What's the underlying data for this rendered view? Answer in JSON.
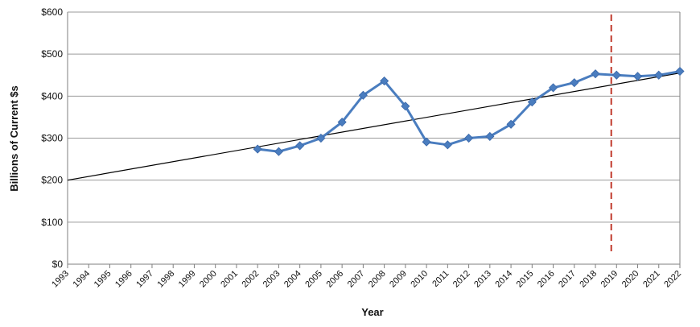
{
  "chart_data": {
    "type": "line",
    "xlabel": "Year",
    "ylabel": "Billions of Current $s",
    "ylim": [
      0,
      600
    ],
    "yticks": [
      0,
      100,
      200,
      300,
      400,
      500,
      600
    ],
    "ytick_labels": [
      "$0",
      "$100",
      "$200",
      "$300",
      "$400",
      "$500",
      "$600"
    ],
    "x_categories": [
      "1993",
      "1994",
      "1995",
      "1996",
      "1997",
      "1998",
      "1999",
      "2000",
      "2001",
      "2002",
      "2003",
      "2004",
      "2005",
      "2006",
      "2007",
      "2008",
      "2009",
      "2010",
      "2011",
      "2012",
      "2013",
      "2014",
      "2015",
      "2016",
      "2017",
      "2018",
      "2019",
      "2020",
      "2021",
      "2022"
    ],
    "grid": "horizontal",
    "legend": "none",
    "series": [
      {
        "x": [
          "2002",
          "2003",
          "2004",
          "2005",
          "2006",
          "2007",
          "2008",
          "2009",
          "2010",
          "2011",
          "2012",
          "2013",
          "2014",
          "2015",
          "2016",
          "2017",
          "2018",
          "2019",
          "2020",
          "2021",
          "2022"
        ],
        "values": [
          274,
          268,
          282,
          300,
          338,
          402,
          436,
          376,
          291,
          284,
          300,
          304,
          333,
          386,
          420,
          432,
          453,
          450,
          447,
          450,
          459
        ],
        "color": "#4a7dbf",
        "marker": "diamond"
      }
    ],
    "trendline": {
      "x": [
        "1993",
        "2022"
      ],
      "values": [
        200,
        455
      ],
      "color": "#000000"
    },
    "reference_line": {
      "x": "2019",
      "offset": -0.25,
      "color": "#c0392b",
      "style": "dashed"
    }
  }
}
